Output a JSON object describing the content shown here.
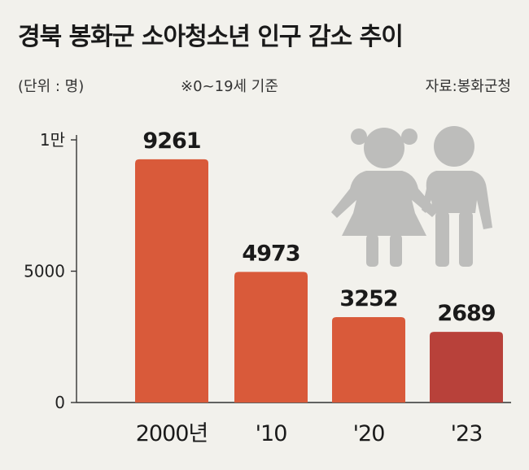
{
  "title": "경북 봉화군 소아청소년 인구 감소 추이",
  "unit": "(단위 : 명)",
  "note": "※0~19세 기준",
  "source": "자료:봉화군청",
  "colors": {
    "bar": "#d95a3a",
    "bar_highlight": "#b8413a",
    "axis": "#333333",
    "icon": "#bdbdbb"
  },
  "icon": "two-children-holding-hands",
  "chart_data": {
    "type": "bar",
    "title": "경북 봉화군 소아청소년 인구 감소 추이",
    "categories": [
      "2000년",
      "'10",
      "'20",
      "'23"
    ],
    "values": [
      9261,
      4973,
      3252,
      2689
    ],
    "highlight_index": 3,
    "ylim": [
      0,
      10000
    ],
    "yticks": [
      0,
      5000,
      10000
    ],
    "ytick_labels": [
      "0",
      "5000",
      "1만"
    ],
    "grid": false,
    "legend": "none"
  }
}
